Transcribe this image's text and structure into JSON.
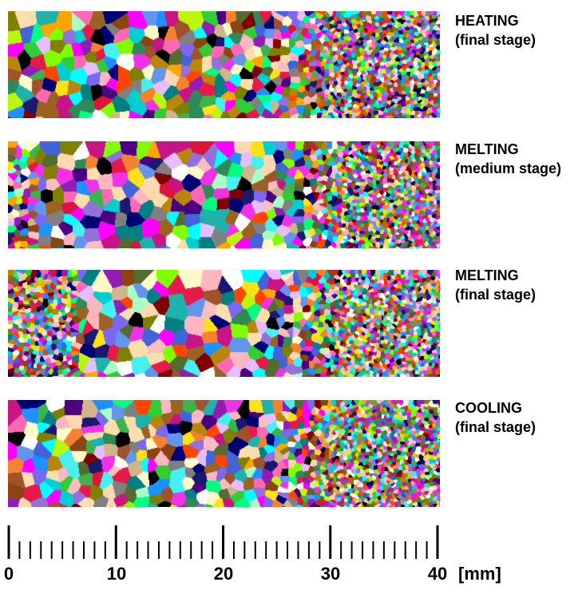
{
  "panels": [
    {
      "title": "HEATING",
      "stage": "(final stage)",
      "grain_profile": "coarse-left-fine-right"
    },
    {
      "title": "MELTING",
      "stage": "(medium stage)",
      "grain_profile": "coarse-middle-fine-right"
    },
    {
      "title": "MELTING",
      "stage": "(final stage)",
      "grain_profile": "fine-left-coarse-middle-fine-right"
    },
    {
      "title": "COOLING",
      "stage": "(final stage)",
      "grain_profile": "coarse-left-fine-right"
    }
  ],
  "scale": {
    "ticks": [
      "0",
      "10",
      "20",
      "30",
      "40"
    ],
    "unit": "[mm]",
    "min": 0,
    "max": 40,
    "minor_step": 1,
    "major_step": 10
  }
}
